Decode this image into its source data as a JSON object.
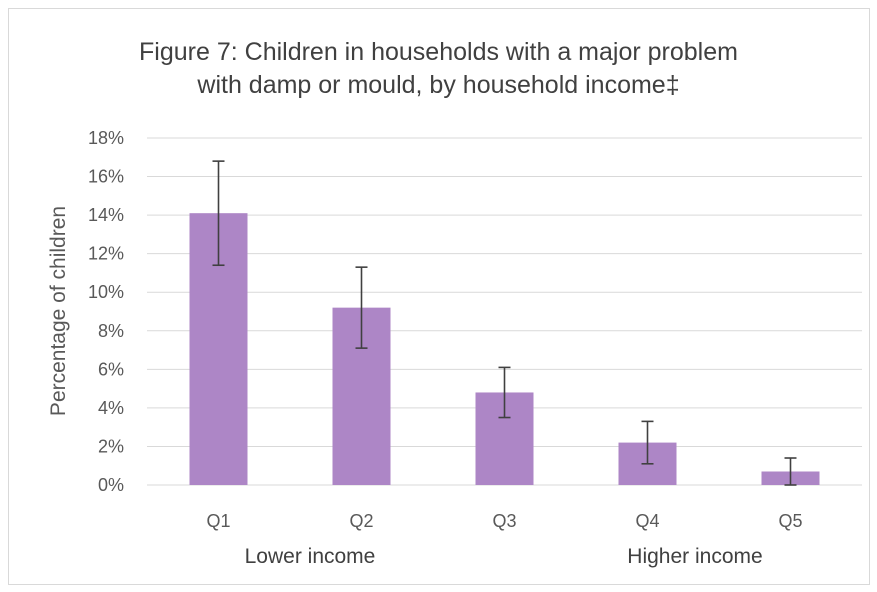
{
  "chart_data": {
    "type": "bar",
    "title_lines": [
      "Figure 7: Children in households with a major problem",
      "with damp or mould, by household income‡"
    ],
    "categories": [
      "Q1",
      "Q2",
      "Q3",
      "Q4",
      "Q5"
    ],
    "values": [
      14.1,
      9.2,
      4.8,
      2.2,
      0.7
    ],
    "error_low": [
      11.4,
      7.1,
      3.5,
      1.1,
      0.0
    ],
    "error_high": [
      16.8,
      11.3,
      6.1,
      3.3,
      1.4
    ],
    "xlabel": "",
    "ylabel": "Percentage of children",
    "ylim": [
      0,
      18
    ],
    "ytick_step": 2,
    "ytick_suffix": "%",
    "grid": true,
    "legend": "none",
    "bar_color": "#ad86c6",
    "errorbar_color": "#404040",
    "gridline_color": "#d9d9d9",
    "income_labels": {
      "low": "Lower income",
      "high": "Higher income"
    }
  }
}
